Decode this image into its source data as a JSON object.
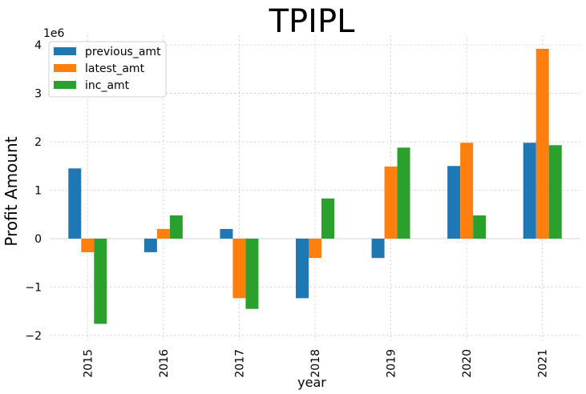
{
  "chart_data": {
    "type": "bar",
    "title": "TPIPL",
    "xlabel": "year",
    "ylabel": "Profit Amount",
    "y_offset_text": "1e6",
    "categories": [
      "2015",
      "2016",
      "2017",
      "2018",
      "2019",
      "2020",
      "2021"
    ],
    "series": [
      {
        "name": "previous_amt",
        "color": "#1f77b4",
        "values": [
          1450000,
          -280000,
          200000,
          -1230000,
          -400000,
          1500000,
          1980000
        ]
      },
      {
        "name": "latest_amt",
        "color": "#ff7f0e",
        "values": [
          -280000,
          200000,
          -1230000,
          -400000,
          1490000,
          1980000,
          3920000
        ]
      },
      {
        "name": "inc_amt",
        "color": "#2ca02c",
        "values": [
          -1760000,
          480000,
          -1450000,
          830000,
          1880000,
          480000,
          1930000
        ]
      }
    ],
    "ylim": [
      -2100000,
      4200000
    ],
    "yticks": [
      -2000000,
      -1000000,
      0,
      1000000,
      2000000,
      3000000,
      4000000
    ],
    "ytick_labels": [
      "−2",
      "−1",
      "0",
      "1",
      "2",
      "3",
      "4"
    ],
    "grid": true,
    "legend_position": "top-left"
  }
}
